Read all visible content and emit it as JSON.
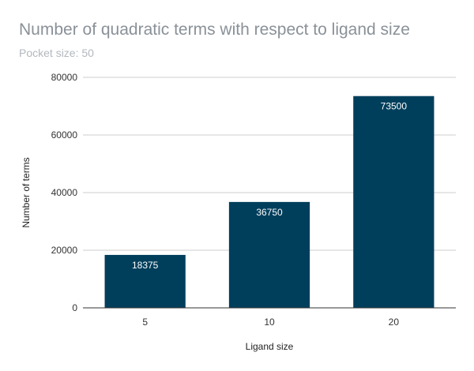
{
  "chart_data": {
    "type": "bar",
    "title": "Number of quadratic terms with respect to ligand size",
    "subtitle": "Pocket size: 50",
    "xlabel": "Ligand size",
    "ylabel": "Number of terms",
    "categories": [
      "5",
      "10",
      "20"
    ],
    "values": [
      18375,
      36750,
      73500
    ],
    "data_labels": [
      "18375",
      "36750",
      "73500"
    ],
    "ylim": [
      0,
      80000
    ],
    "yticks": [
      0,
      20000,
      40000,
      60000,
      80000
    ],
    "ytick_labels": [
      "0",
      "20000",
      "40000",
      "60000",
      "80000"
    ],
    "grid": true,
    "legend": "none",
    "bar_color": "#003f5c",
    "gridline_color": "#cccccc"
  }
}
